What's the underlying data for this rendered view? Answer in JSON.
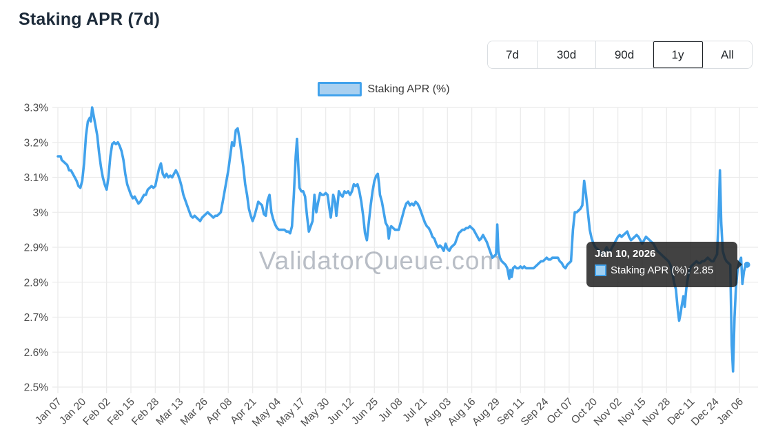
{
  "header": {
    "title": "Staking APR (7d)"
  },
  "time_ranges": {
    "options": [
      "7d",
      "30d",
      "90d",
      "1y",
      "All"
    ],
    "selected": "1y"
  },
  "chart_data": {
    "type": "line",
    "title": "Staking APR (7d)",
    "legend_label": "Staking APR (%)",
    "legend_position": "top",
    "watermark": "ValidatorQueue.com",
    "grid": true,
    "y_range": [
      2.5,
      3.3
    ],
    "y_tick_labels": [
      "3.3%",
      "3.2%",
      "3.1%",
      "3%",
      "2.9%",
      "2.8%",
      "2.7%",
      "2.6%",
      "2.5%"
    ],
    "x_tick_labels": [
      "Jan 07",
      "Jan 20",
      "Feb 02",
      "Feb 15",
      "Feb 28",
      "Mar 13",
      "Mar 26",
      "Apr 08",
      "Apr 21",
      "May 04",
      "May 17",
      "May 30",
      "Jun 12",
      "Jun 25",
      "Jul 08",
      "Jul 21",
      "Aug 03",
      "Aug 16",
      "Aug 29",
      "Sep 11",
      "Sep 24",
      "Oct 07",
      "Oct 20",
      "Nov 02",
      "Nov 15",
      "Nov 28",
      "Dec 11",
      "Dec 24",
      "Jan 06"
    ],
    "x_tick_interval_days": 13,
    "line_color": "#41a2ec",
    "legend_fill_color": "#a9d0f0",
    "grid_color": "#ebebeb",
    "axis_label_color": "#4d4d4d",
    "watermark_color": "rgba(128,136,152,0.55)",
    "tooltip": {
      "title": "Jan 10, 2026",
      "series_label": "Staking APR (%)",
      "value": "2.85",
      "body": "Staking APR (%): 2.85"
    },
    "points": [
      [
        0,
        3.16
      ],
      [
        1.5,
        3.16
      ],
      [
        2,
        3.15
      ],
      [
        3,
        3.145
      ],
      [
        4,
        3.14
      ],
      [
        5,
        3.135
      ],
      [
        6,
        3.12
      ],
      [
        7,
        3.12
      ],
      [
        8,
        3.11
      ],
      [
        9,
        3.1
      ],
      [
        10,
        3.09
      ],
      [
        11,
        3.075
      ],
      [
        12,
        3.07
      ],
      [
        13,
        3.09
      ],
      [
        14,
        3.14
      ],
      [
        15,
        3.22
      ],
      [
        16,
        3.26
      ],
      [
        17,
        3.27
      ],
      [
        17.6,
        3.26
      ],
      [
        18.3,
        3.3
      ],
      [
        19,
        3.28
      ],
      [
        20,
        3.25
      ],
      [
        21,
        3.22
      ],
      [
        22,
        3.17
      ],
      [
        23,
        3.13
      ],
      [
        24,
        3.1
      ],
      [
        25,
        3.08
      ],
      [
        26,
        3.065
      ],
      [
        27,
        3.1
      ],
      [
        28,
        3.16
      ],
      [
        29,
        3.195
      ],
      [
        30,
        3.2
      ],
      [
        31,
        3.195
      ],
      [
        32,
        3.2
      ],
      [
        33,
        3.19
      ],
      [
        34,
        3.175
      ],
      [
        35,
        3.15
      ],
      [
        36,
        3.11
      ],
      [
        37,
        3.08
      ],
      [
        38,
        3.065
      ],
      [
        39,
        3.05
      ],
      [
        40,
        3.04
      ],
      [
        41,
        3.045
      ],
      [
        42,
        3.035
      ],
      [
        43,
        3.025
      ],
      [
        44,
        3.03
      ],
      [
        45,
        3.04
      ],
      [
        46,
        3.05
      ],
      [
        47,
        3.05
      ],
      [
        48,
        3.065
      ],
      [
        49,
        3.07
      ],
      [
        50,
        3.075
      ],
      [
        51,
        3.07
      ],
      [
        52,
        3.075
      ],
      [
        53,
        3.1
      ],
      [
        54,
        3.125
      ],
      [
        55,
        3.14
      ],
      [
        56,
        3.11
      ],
      [
        57,
        3.1
      ],
      [
        58,
        3.11
      ],
      [
        59,
        3.1
      ],
      [
        60,
        3.105
      ],
      [
        61,
        3.1
      ],
      [
        62,
        3.11
      ],
      [
        63,
        3.12
      ],
      [
        64,
        3.11
      ],
      [
        65,
        3.095
      ],
      [
        66,
        3.075
      ],
      [
        67,
        3.05
      ],
      [
        68,
        3.035
      ],
      [
        69,
        3.02
      ],
      [
        70,
        3.005
      ],
      [
        71,
        2.99
      ],
      [
        72,
        2.985
      ],
      [
        73,
        2.99
      ],
      [
        74,
        2.985
      ],
      [
        75,
        2.98
      ],
      [
        76,
        2.975
      ],
      [
        77,
        2.985
      ],
      [
        78,
        2.99
      ],
      [
        79,
        2.995
      ],
      [
        80,
        3.0
      ],
      [
        81,
        2.995
      ],
      [
        82,
        2.99
      ],
      [
        83,
        2.985
      ],
      [
        84,
        2.99
      ],
      [
        85,
        2.99
      ],
      [
        86,
        2.995
      ],
      [
        87,
        3.0
      ],
      [
        88,
        3.03
      ],
      [
        89,
        3.06
      ],
      [
        90,
        3.09
      ],
      [
        91,
        3.12
      ],
      [
        92,
        3.16
      ],
      [
        93,
        3.2
      ],
      [
        94,
        3.19
      ],
      [
        95,
        3.235
      ],
      [
        96,
        3.24
      ],
      [
        97,
        3.21
      ],
      [
        98,
        3.17
      ],
      [
        99,
        3.13
      ],
      [
        100,
        3.08
      ],
      [
        101,
        3.05
      ],
      [
        102,
        3.01
      ],
      [
        103,
        2.99
      ],
      [
        104,
        2.975
      ],
      [
        105,
        2.99
      ],
      [
        106,
        3.01
      ],
      [
        107,
        3.03
      ],
      [
        108,
        3.025
      ],
      [
        109,
        3.02
      ],
      [
        110,
        2.995
      ],
      [
        111,
        2.99
      ],
      [
        112,
        3.035
      ],
      [
        113,
        3.05
      ],
      [
        114,
        3.0
      ],
      [
        115,
        2.98
      ],
      [
        116,
        2.965
      ],
      [
        117,
        2.955
      ],
      [
        118,
        2.95
      ],
      [
        119,
        2.95
      ],
      [
        120,
        2.95
      ],
      [
        121,
        2.95
      ],
      [
        122,
        2.945
      ],
      [
        123,
        2.945
      ],
      [
        124,
        2.94
      ],
      [
        125,
        2.96
      ],
      [
        126,
        3.05
      ],
      [
        127,
        3.16
      ],
      [
        127.7,
        3.21
      ],
      [
        128.5,
        3.12
      ],
      [
        129,
        3.07
      ],
      [
        130,
        3.06
      ],
      [
        131,
        3.06
      ],
      [
        132,
        3.045
      ],
      [
        133,
        2.99
      ],
      [
        134,
        2.945
      ],
      [
        135,
        2.96
      ],
      [
        136,
        2.975
      ],
      [
        137,
        3.05
      ],
      [
        138,
        3.0
      ],
      [
        139,
        3.03
      ],
      [
        140,
        3.055
      ],
      [
        141,
        3.05
      ],
      [
        142,
        3.05
      ],
      [
        143,
        3.055
      ],
      [
        144,
        3.05
      ],
      [
        145,
        3.01
      ],
      [
        145.7,
        2.985
      ],
      [
        146.5,
        3.02
      ],
      [
        147,
        3.05
      ],
      [
        148,
        3.03
      ],
      [
        148.7,
        2.99
      ],
      [
        149.5,
        3.03
      ],
      [
        150,
        3.06
      ],
      [
        151,
        3.05
      ],
      [
        152,
        3.045
      ],
      [
        153,
        3.06
      ],
      [
        154,
        3.055
      ],
      [
        155,
        3.06
      ],
      [
        156,
        3.05
      ],
      [
        157,
        3.06
      ],
      [
        158,
        3.08
      ],
      [
        159,
        3.075
      ],
      [
        160,
        3.08
      ],
      [
        161,
        3.06
      ],
      [
        162,
        3.03
      ],
      [
        163,
        2.99
      ],
      [
        164,
        2.94
      ],
      [
        165,
        2.92
      ],
      [
        166,
        2.97
      ],
      [
        167,
        3.02
      ],
      [
        168,
        3.06
      ],
      [
        169,
        3.09
      ],
      [
        170,
        3.105
      ],
      [
        170.8,
        3.11
      ],
      [
        171.5,
        3.08
      ],
      [
        172,
        3.05
      ],
      [
        173,
        3.03
      ],
      [
        174,
        3.0
      ],
      [
        175,
        2.97
      ],
      [
        176,
        2.96
      ],
      [
        176.7,
        2.925
      ],
      [
        177.5,
        2.955
      ],
      [
        178,
        2.96
      ],
      [
        179,
        2.955
      ],
      [
        180,
        2.95
      ],
      [
        181,
        2.95
      ],
      [
        182,
        2.95
      ],
      [
        183,
        2.97
      ],
      [
        184,
        2.99
      ],
      [
        185,
        3.01
      ],
      [
        186,
        3.025
      ],
      [
        187,
        3.03
      ],
      [
        188,
        3.02
      ],
      [
        189,
        3.025
      ],
      [
        190,
        3.02
      ],
      [
        191,
        3.03
      ],
      [
        192,
        3.025
      ],
      [
        193,
        3.015
      ],
      [
        194,
        3.0
      ],
      [
        195,
        2.985
      ],
      [
        196,
        2.97
      ],
      [
        197,
        2.96
      ],
      [
        198,
        2.955
      ],
      [
        199,
        2.945
      ],
      [
        200,
        2.93
      ],
      [
        201,
        2.925
      ],
      [
        202,
        2.91
      ],
      [
        203,
        2.9
      ],
      [
        204,
        2.905
      ],
      [
        205,
        2.9
      ],
      [
        206,
        2.89
      ],
      [
        207,
        2.91
      ],
      [
        208,
        2.895
      ],
      [
        209,
        2.89
      ],
      [
        210,
        2.9
      ],
      [
        211,
        2.905
      ],
      [
        212,
        2.91
      ],
      [
        213,
        2.925
      ],
      [
        214,
        2.94
      ],
      [
        215,
        2.945
      ],
      [
        216,
        2.95
      ],
      [
        217,
        2.95
      ],
      [
        218,
        2.955
      ],
      [
        219,
        2.955
      ],
      [
        220,
        2.96
      ],
      [
        221,
        2.955
      ],
      [
        222,
        2.95
      ],
      [
        223,
        2.94
      ],
      [
        224,
        2.93
      ],
      [
        225,
        2.92
      ],
      [
        226,
        2.925
      ],
      [
        227,
        2.935
      ],
      [
        228,
        2.925
      ],
      [
        229,
        2.915
      ],
      [
        230,
        2.9
      ],
      [
        231,
        2.885
      ],
      [
        232,
        2.87
      ],
      [
        233,
        2.875
      ],
      [
        234,
        2.88
      ],
      [
        234.6,
        2.965
      ],
      [
        235.2,
        2.89
      ],
      [
        236,
        2.87
      ],
      [
        237,
        2.86
      ],
      [
        238,
        2.855
      ],
      [
        239,
        2.85
      ],
      [
        240,
        2.84
      ],
      [
        241,
        2.81
      ],
      [
        241.6,
        2.835
      ],
      [
        242.3,
        2.815
      ],
      [
        243,
        2.84
      ],
      [
        244,
        2.845
      ],
      [
        245,
        2.84
      ],
      [
        246,
        2.84
      ],
      [
        247,
        2.845
      ],
      [
        248,
        2.84
      ],
      [
        249,
        2.845
      ],
      [
        250,
        2.84
      ],
      [
        251,
        2.84
      ],
      [
        252,
        2.84
      ],
      [
        253,
        2.84
      ],
      [
        254,
        2.84
      ],
      [
        255,
        2.845
      ],
      [
        256,
        2.85
      ],
      [
        257,
        2.855
      ],
      [
        258,
        2.86
      ],
      [
        259,
        2.86
      ],
      [
        260,
        2.865
      ],
      [
        261,
        2.87
      ],
      [
        262,
        2.865
      ],
      [
        263,
        2.865
      ],
      [
        264,
        2.87
      ],
      [
        265,
        2.87
      ],
      [
        266,
        2.87
      ],
      [
        267,
        2.87
      ],
      [
        268,
        2.86
      ],
      [
        269,
        2.855
      ],
      [
        270,
        2.845
      ],
      [
        271,
        2.84
      ],
      [
        272,
        2.85
      ],
      [
        273,
        2.855
      ],
      [
        274,
        2.86
      ],
      [
        275,
        2.95
      ],
      [
        276,
        3.0
      ],
      [
        277,
        3.0
      ],
      [
        278,
        3.005
      ],
      [
        279,
        3.01
      ],
      [
        280,
        3.02
      ],
      [
        281,
        3.09
      ],
      [
        282,
        3.05
      ],
      [
        283,
        3.0
      ],
      [
        284,
        2.95
      ],
      [
        285,
        2.925
      ],
      [
        286,
        2.91
      ],
      [
        287,
        2.9
      ],
      [
        288,
        2.895
      ],
      [
        289,
        2.89
      ],
      [
        290,
        2.885
      ],
      [
        291,
        2.88
      ],
      [
        292,
        2.89
      ],
      [
        293,
        2.9
      ],
      [
        294,
        2.89
      ],
      [
        295,
        2.89
      ],
      [
        296,
        2.9
      ],
      [
        297,
        2.91
      ],
      [
        298,
        2.92
      ],
      [
        299,
        2.93
      ],
      [
        300,
        2.935
      ],
      [
        301,
        2.93
      ],
      [
        302,
        2.935
      ],
      [
        303,
        2.94
      ],
      [
        304,
        2.945
      ],
      [
        305,
        2.93
      ],
      [
        306,
        2.92
      ],
      [
        307,
        2.925
      ],
      [
        308,
        2.93
      ],
      [
        309,
        2.935
      ],
      [
        310,
        2.93
      ],
      [
        311,
        2.92
      ],
      [
        312,
        2.91
      ],
      [
        313,
        2.92
      ],
      [
        314,
        2.93
      ],
      [
        315,
        2.925
      ],
      [
        316,
        2.92
      ],
      [
        317,
        2.915
      ],
      [
        318,
        2.91
      ],
      [
        319,
        2.9
      ],
      [
        320,
        2.89
      ],
      [
        321,
        2.885
      ],
      [
        322,
        2.88
      ],
      [
        323,
        2.875
      ],
      [
        324,
        2.87
      ],
      [
        325,
        2.865
      ],
      [
        326,
        2.86
      ],
      [
        327,
        2.85
      ],
      [
        328,
        2.83
      ],
      [
        329,
        2.8
      ],
      [
        330,
        2.78
      ],
      [
        331,
        2.72
      ],
      [
        331.7,
        2.69
      ],
      [
        332.5,
        2.71
      ],
      [
        333,
        2.73
      ],
      [
        334,
        2.76
      ],
      [
        334.7,
        2.73
      ],
      [
        335.5,
        2.78
      ],
      [
        336,
        2.8
      ],
      [
        337,
        2.83
      ],
      [
        338,
        2.845
      ],
      [
        339,
        2.85
      ],
      [
        340,
        2.855
      ],
      [
        341,
        2.86
      ],
      [
        342,
        2.855
      ],
      [
        343,
        2.855
      ],
      [
        344,
        2.86
      ],
      [
        345,
        2.86
      ],
      [
        346,
        2.865
      ],
      [
        347,
        2.87
      ],
      [
        348,
        2.865
      ],
      [
        349,
        2.86
      ],
      [
        350,
        2.86
      ],
      [
        351,
        2.87
      ],
      [
        352,
        2.88
      ],
      [
        352.8,
        2.99
      ],
      [
        353.5,
        3.12
      ],
      [
        354.2,
        2.97
      ],
      [
        355,
        2.89
      ],
      [
        356,
        2.87
      ],
      [
        357,
        2.86
      ],
      [
        358,
        2.855
      ],
      [
        359,
        2.85
      ],
      [
        359.8,
        2.62
      ],
      [
        360.5,
        2.545
      ],
      [
        361.3,
        2.7
      ],
      [
        362,
        2.78
      ],
      [
        363,
        2.84
      ],
      [
        364,
        2.86
      ],
      [
        364.8,
        2.87
      ],
      [
        365.5,
        2.795
      ],
      [
        366.3,
        2.83
      ],
      [
        367,
        2.845
      ],
      [
        367.6,
        2.855
      ],
      [
        368,
        2.85
      ]
    ]
  }
}
